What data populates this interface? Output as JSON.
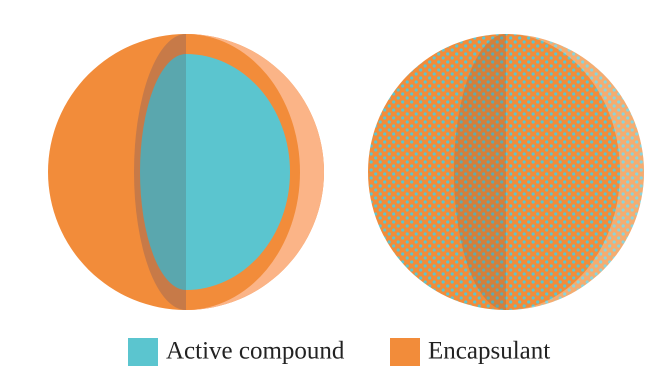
{
  "legend": {
    "items": [
      {
        "label": "Active compound"
      },
      {
        "label": "Encapsulant"
      }
    ]
  }
}
